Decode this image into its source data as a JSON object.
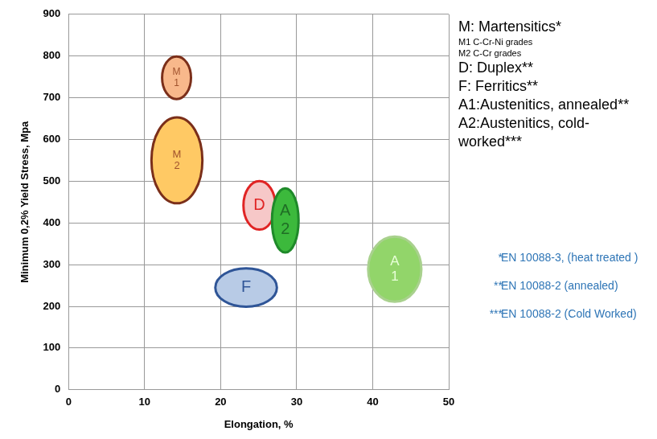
{
  "chart_data": {
    "type": "ellipse",
    "x_label": "Elongation, %",
    "y_label": "Minimum 0,2% Yield Stress, Mpa",
    "xlim": [
      0,
      50
    ],
    "xticks": [
      0,
      10,
      20,
      30,
      40,
      50
    ],
    "ylim": [
      0,
      900
    ],
    "yticks": [
      0,
      100,
      200,
      300,
      400,
      500,
      600,
      700,
      800,
      900
    ],
    "grid": true,
    "series": [
      {
        "name": "M1",
        "label": [
          "M",
          "1"
        ],
        "color": "#f8b88b",
        "x": [
          14.2
        ],
        "values": [
          748
        ],
        "x_radius": [
          1.9
        ],
        "y_radius": [
          51
        ]
      },
      {
        "name": "M2",
        "label": [
          "M",
          "2"
        ],
        "color": "#ffc964",
        "x": [
          14.25
        ],
        "values": [
          550
        ],
        "x_radius": [
          3.35
        ],
        "y_radius": [
          103
        ]
      },
      {
        "name": "D",
        "label": [
          "D"
        ],
        "color": "#f6c8c8",
        "x": [
          25.1
        ],
        "values": [
          442
        ],
        "x_radius": [
          2.1
        ],
        "y_radius": [
          58
        ]
      },
      {
        "name": "A2",
        "label": [
          "A",
          "2"
        ],
        "color": "#3cb93c",
        "x": [
          28.5
        ],
        "values": [
          406
        ],
        "x_radius": [
          1.75
        ],
        "y_radius": [
          77
        ]
      },
      {
        "name": "F",
        "label": [
          "F"
        ],
        "color": "#b8cbe6",
        "x": [
          23.35
        ],
        "values": [
          245
        ],
        "x_radius": [
          4.05
        ],
        "y_radius": [
          46
        ]
      },
      {
        "name": "A1",
        "label": [
          "A",
          "1"
        ],
        "color": "#92d56a",
        "x": [
          42.9
        ],
        "values": [
          289
        ],
        "x_radius": [
          3.5
        ],
        "y_radius": [
          78
        ]
      }
    ],
    "annotations": {
      "groups": [
        {
          "heading": "M: Martensitics*",
          "items": [
            "M1 C-Cr-Ni grades",
            "M2  C-Cr grades"
          ]
        },
        {
          "heading": "D: Duplex**",
          "items": []
        },
        {
          "heading": "F: Ferritics**",
          "items": []
        },
        {
          "heading": "A1:Austenitics, annealed**",
          "items": []
        },
        {
          "heading": "A2:Austenitics, cold-worked***",
          "items": []
        }
      ],
      "footnotes": [
        {
          "mark": "*",
          "text": "EN 10088-3, (heat treated )"
        },
        {
          "mark": "**",
          "text": "EN 10088-2 (annealed)"
        },
        {
          "mark": "***",
          "text": "EN 10088-2 (Cold Worked)"
        }
      ]
    }
  }
}
